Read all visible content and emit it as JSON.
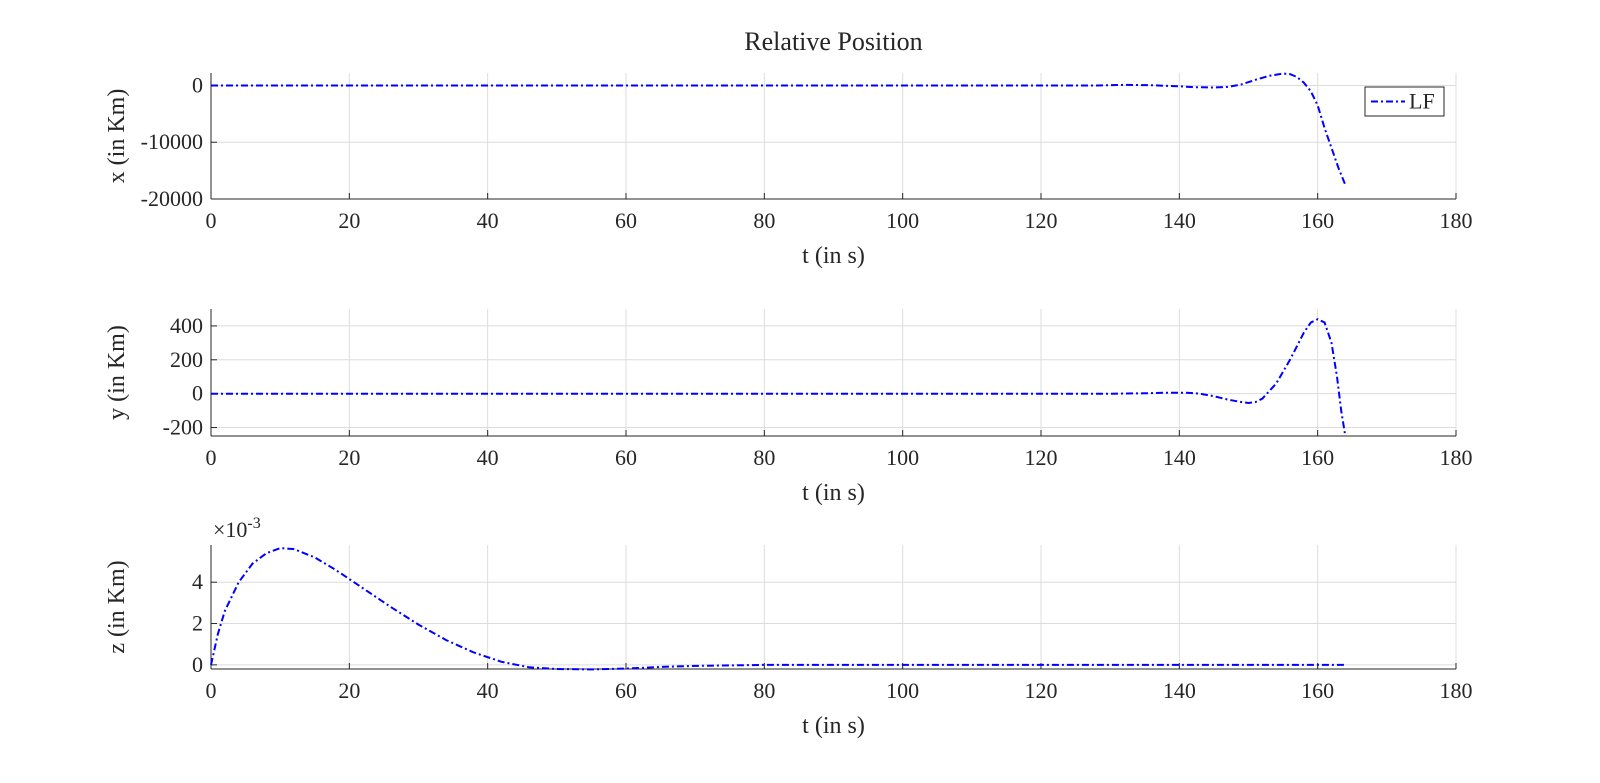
{
  "chart_data": {
    "title": "Relative Position",
    "legend": {
      "entries": [
        "LF"
      ],
      "placement": "top-right (first axes)"
    },
    "series_color": "#0000ff",
    "line_style": "dash-dot",
    "grid": true,
    "subplots": [
      {
        "type": "line",
        "xlabel": "t (in s)",
        "ylabel": "x (in Km)",
        "xlim": [
          0,
          180
        ],
        "ylim": [
          -20000,
          2200
        ],
        "xticks": [
          0,
          20,
          40,
          60,
          80,
          100,
          120,
          140,
          160,
          180
        ],
        "yticks": [
          -20000,
          -10000,
          0
        ],
        "ytick_labels": [
          "-20000",
          "-10000",
          "0"
        ],
        "exponent_label": "",
        "series": [
          {
            "name": "LF",
            "x": [
              0,
              20,
              40,
              60,
              80,
              100,
              120,
              128,
              132,
              136,
              138,
              140,
              142,
              145,
              147,
              149,
              151,
              153,
              155,
              156,
              157,
              158,
              159,
              160,
              161,
              162,
              163,
              164
            ],
            "y": [
              0,
              0,
              0,
              0,
              0,
              0,
              0,
              0,
              100,
              50,
              -50,
              -150,
              -300,
              -350,
              -250,
              200,
              1000,
              1700,
              2100,
              2000,
              1500,
              500,
              -1000,
              -3500,
              -7500,
              -11000,
              -14500,
              -17500
            ]
          }
        ]
      },
      {
        "type": "line",
        "xlabel": "t (in s)",
        "ylabel": "y (in Km)",
        "xlim": [
          0,
          180
        ],
        "ylim": [
          -250,
          500
        ],
        "xticks": [
          0,
          20,
          40,
          60,
          80,
          100,
          120,
          140,
          160,
          180
        ],
        "yticks": [
          -200,
          0,
          200,
          400
        ],
        "ytick_labels": [
          "-200",
          "0",
          "200",
          "400"
        ],
        "exponent_label": "",
        "series": [
          {
            "name": "LF",
            "x": [
              0,
              20,
              40,
              60,
              80,
              100,
              120,
              130,
              135,
              138,
              141,
              143,
              145,
              147,
              149,
              150,
              151,
              152,
              154,
              156,
              158,
              159,
              160,
              161,
              162,
              162.8,
              163.4,
              164
            ],
            "y": [
              0,
              0,
              0,
              0,
              0,
              0,
              0,
              0,
              2,
              6,
              6,
              0,
              -15,
              -35,
              -50,
              -55,
              -50,
              -30,
              60,
              200,
              360,
              420,
              440,
              420,
              300,
              100,
              -100,
              -250
            ]
          }
        ]
      },
      {
        "type": "line",
        "xlabel": "t (in s)",
        "ylabel": "z (in Km)",
        "xlim": [
          0,
          180
        ],
        "ylim": [
          -0.2,
          5.8
        ],
        "xticks": [
          0,
          20,
          40,
          60,
          80,
          100,
          120,
          140,
          160,
          180
        ],
        "yticks": [
          0,
          2,
          4
        ],
        "ytick_labels": [
          "0",
          "2",
          "4"
        ],
        "exponent_label": "×10",
        "exponent_power": "-3",
        "series": [
          {
            "name": "LF",
            "x": [
              0,
              1,
              2,
              4,
              6,
              8,
              10,
              12,
              15,
              18,
              22,
              26,
              30,
              34,
              38,
              42,
              46,
              50,
              55,
              60,
              65,
              70,
              80,
              100,
              120,
              140,
              164
            ],
            "y": [
              0,
              1.5,
              2.6,
              4.0,
              4.9,
              5.4,
              5.65,
              5.6,
              5.2,
              4.6,
              3.7,
              2.8,
              1.95,
              1.2,
              0.6,
              0.15,
              -0.12,
              -0.2,
              -0.22,
              -0.18,
              -0.1,
              -0.05,
              0,
              0,
              0,
              0,
              0
            ]
          }
        ]
      }
    ]
  }
}
